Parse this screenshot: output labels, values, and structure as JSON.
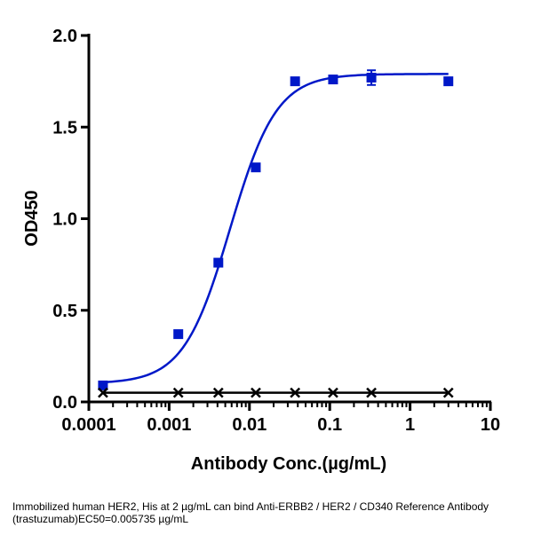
{
  "chart_data": {
    "type": "scatter",
    "xlabel": "Antibody Conc.(µg/mL)",
    "ylabel": "OD450",
    "x_scale": "log",
    "xlim": [
      0.0001,
      10
    ],
    "ylim": [
      0,
      2.0
    ],
    "x_ticks": [
      {
        "value": 0.0001,
        "label": "0.0001"
      },
      {
        "value": 0.001,
        "label": "0.001"
      },
      {
        "value": 0.01,
        "label": "0.01"
      },
      {
        "value": 0.1,
        "label": "0.1"
      },
      {
        "value": 1,
        "label": "1"
      },
      {
        "value": 10,
        "label": "10"
      }
    ],
    "y_ticks": [
      {
        "value": 0,
        "label": "0.0"
      },
      {
        "value": 0.5,
        "label": "0.5"
      },
      {
        "value": 1.0,
        "label": "1.0"
      },
      {
        "value": 1.5,
        "label": "1.5"
      },
      {
        "value": 2.0,
        "label": "2.0"
      }
    ],
    "grid": false,
    "legend": "none",
    "series": [
      {
        "marker": "square",
        "color": "#0018c8",
        "points": [
          {
            "x": 0.00015,
            "y": 0.09
          },
          {
            "x": 0.0013,
            "y": 0.37
          },
          {
            "x": 0.0041,
            "y": 0.76
          },
          {
            "x": 0.012,
            "y": 1.28
          },
          {
            "x": 0.037,
            "y": 1.75
          },
          {
            "x": 0.11,
            "y": 1.76
          },
          {
            "x": 0.33,
            "y": 1.77,
            "err": 0.04
          },
          {
            "x": 3.0,
            "y": 1.75
          }
        ],
        "fit": {
          "type": "4PL",
          "bottom": 0.1,
          "top": 1.79,
          "ec50": 0.005735,
          "hill": 1.5
        }
      },
      {
        "marker": "x",
        "color": "#000000",
        "points": [
          {
            "x": 0.00015,
            "y": 0.05
          },
          {
            "x": 0.0013,
            "y": 0.05
          },
          {
            "x": 0.0041,
            "y": 0.05
          },
          {
            "x": 0.012,
            "y": 0.05
          },
          {
            "x": 0.037,
            "y": 0.05
          },
          {
            "x": 0.11,
            "y": 0.05
          },
          {
            "x": 0.33,
            "y": 0.05
          },
          {
            "x": 3.0,
            "y": 0.05
          }
        ],
        "fit": {
          "type": "flat",
          "y": 0.05
        }
      }
    ]
  },
  "caption": {
    "line1": "Immobilized human HER2, His at 2  µg/mL can bind  Anti-ERBB2 / HER2 / CD340 Reference Antibody",
    "line2": "(trastuzumab)\u001fEC50=0.005735 µg/mL"
  }
}
